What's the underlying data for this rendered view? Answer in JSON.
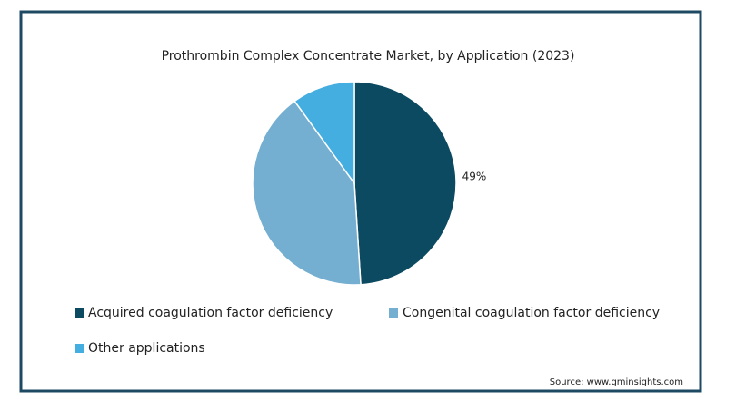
{
  "chart_data": {
    "type": "pie",
    "title": "Prothrombin Complex Concentrate Market, by Application (2023)",
    "categories": [
      "Acquired coagulation factor deficiency",
      "Congenital coagulation factor deficiency",
      "Other applications"
    ],
    "values": [
      49,
      41,
      10
    ],
    "value_labels": [
      "49%",
      null,
      null
    ],
    "colors": [
      "#0b4a60",
      "#74aed0",
      "#45aee0"
    ],
    "source": "Source: www.gminsights.com"
  }
}
